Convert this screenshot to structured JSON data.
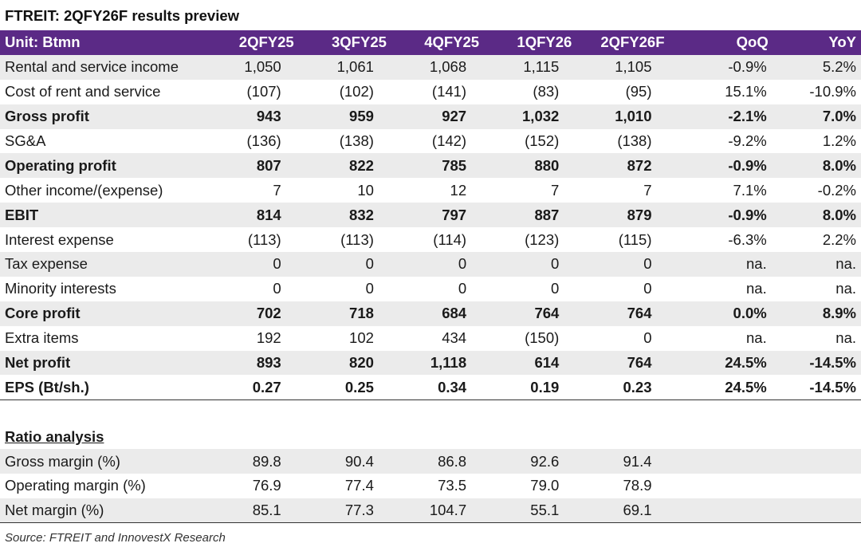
{
  "title": "FTREIT: 2QFY26F results preview",
  "header": [
    "Unit: Btmn",
    "2QFY25",
    "3QFY25",
    "4QFY25",
    "1QFY26",
    "2QFY26F",
    "QoQ",
    "YoY"
  ],
  "rows": [
    {
      "label": "Rental and service income",
      "values": [
        "1,050",
        "1,061",
        "1,068",
        "1,115",
        "1,105",
        "-0.9%",
        "5.2%"
      ],
      "bold": false,
      "shade": true
    },
    {
      "label": "Cost of rent and service",
      "values": [
        "(107)",
        "(102)",
        "(141)",
        "(83)",
        "(95)",
        "15.1%",
        "-10.9%"
      ],
      "bold": false,
      "shade": false
    },
    {
      "label": "Gross profit",
      "values": [
        "943",
        "959",
        "927",
        "1,032",
        "1,010",
        "-2.1%",
        "7.0%"
      ],
      "bold": true,
      "shade": true
    },
    {
      "label": "SG&A",
      "values": [
        "(136)",
        "(138)",
        "(142)",
        "(152)",
        "(138)",
        "-9.2%",
        "1.2%"
      ],
      "bold": false,
      "shade": false
    },
    {
      "label": "Operating profit",
      "values": [
        "807",
        "822",
        "785",
        "880",
        "872",
        "-0.9%",
        "8.0%"
      ],
      "bold": true,
      "shade": true
    },
    {
      "label": "Other income/(expense)",
      "values": [
        "7",
        "10",
        "12",
        "7",
        "7",
        "7.1%",
        "-0.2%"
      ],
      "bold": false,
      "shade": false
    },
    {
      "label": "EBIT",
      "values": [
        "814",
        "832",
        "797",
        "887",
        "879",
        "-0.9%",
        "8.0%"
      ],
      "bold": true,
      "shade": true
    },
    {
      "label": "Interest expense",
      "values": [
        "(113)",
        "(113)",
        "(114)",
        "(123)",
        "(115)",
        "-6.3%",
        "2.2%"
      ],
      "bold": false,
      "shade": false
    },
    {
      "label": "Tax expense",
      "values": [
        "0",
        "0",
        "0",
        "0",
        "0",
        "na.",
        "na."
      ],
      "bold": false,
      "shade": true
    },
    {
      "label": "Minority interests",
      "values": [
        "0",
        "0",
        "0",
        "0",
        "0",
        "na.",
        "na."
      ],
      "bold": false,
      "shade": false
    },
    {
      "label": "Core profit",
      "values": [
        "702",
        "718",
        "684",
        "764",
        "764",
        "0.0%",
        "8.9%"
      ],
      "bold": true,
      "shade": true
    },
    {
      "label": "Extra items",
      "values": [
        "192",
        "102",
        "434",
        "(150)",
        "0",
        "na.",
        "na."
      ],
      "bold": false,
      "shade": false
    },
    {
      "label": "Net profit",
      "values": [
        "893",
        "820",
        "1,118",
        "614",
        "764",
        "24.5%",
        "-14.5%"
      ],
      "bold": true,
      "shade": true
    },
    {
      "label": "EPS (Bt/sh.)",
      "values": [
        "0.27",
        "0.25",
        "0.34",
        "0.19",
        "0.23",
        "24.5%",
        "-14.5%"
      ],
      "bold": true,
      "shade": false
    }
  ],
  "ratio_section": "Ratio analysis",
  "ratio_rows": [
    {
      "label": "Gross margin (%)",
      "values": [
        "89.8",
        "90.4",
        "86.8",
        "92.6",
        "91.4",
        "",
        ""
      ],
      "shade": true
    },
    {
      "label": "Operating margin (%)",
      "values": [
        "76.9",
        "77.4",
        "73.5",
        "79.0",
        "78.9",
        "",
        ""
      ],
      "shade": false
    },
    {
      "label": "Net margin (%)",
      "values": [
        "85.1",
        "77.3",
        "104.7",
        "55.1",
        "69.1",
        "",
        ""
      ],
      "shade": true
    }
  ],
  "source": "Source: FTREIT and InnovestX Research"
}
